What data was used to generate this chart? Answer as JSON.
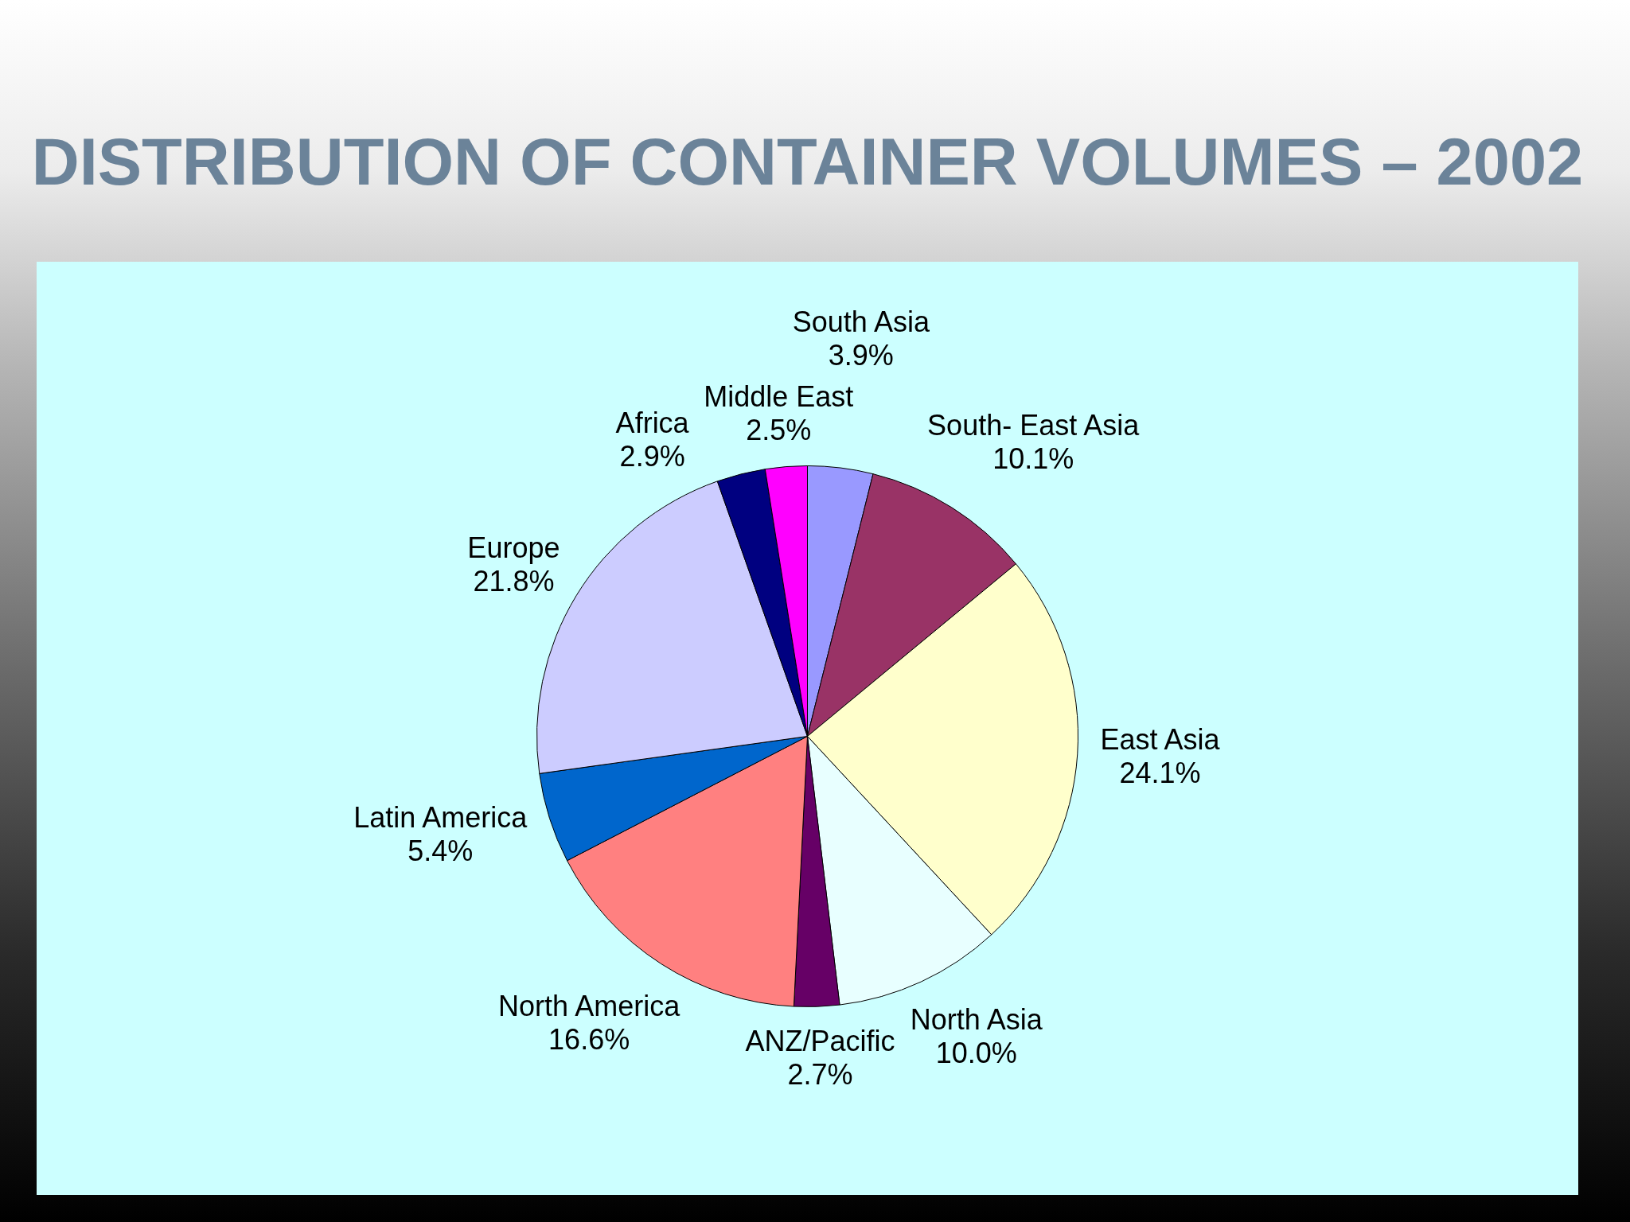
{
  "chart_data": {
    "type": "pie",
    "title": "DISTRIBUTION OF CONTAINER VOLUMES – 2002",
    "categories": [
      "South Asia",
      "South- East Asia",
      "East Asia",
      "North Asia",
      "ANZ/Pacific",
      "North America",
      "Latin America",
      "Europe",
      "Africa",
      "Middle East"
    ],
    "values": [
      3.9,
      10.1,
      24.1,
      10.0,
      2.7,
      16.6,
      5.4,
      21.8,
      2.9,
      2.5
    ],
    "value_labels": [
      "3.9%",
      "10.1%",
      "24.1%",
      "10.0%",
      "2.7%",
      "16.6%",
      "5.4%",
      "21.8%",
      "2.9%",
      "2.5%"
    ],
    "colors": [
      "#9999ff",
      "#993366",
      "#ffffcc",
      "#e8ffff",
      "#660066",
      "#ff8080",
      "#0066cc",
      "#ccccff",
      "#000080",
      "#ff00ff"
    ]
  }
}
